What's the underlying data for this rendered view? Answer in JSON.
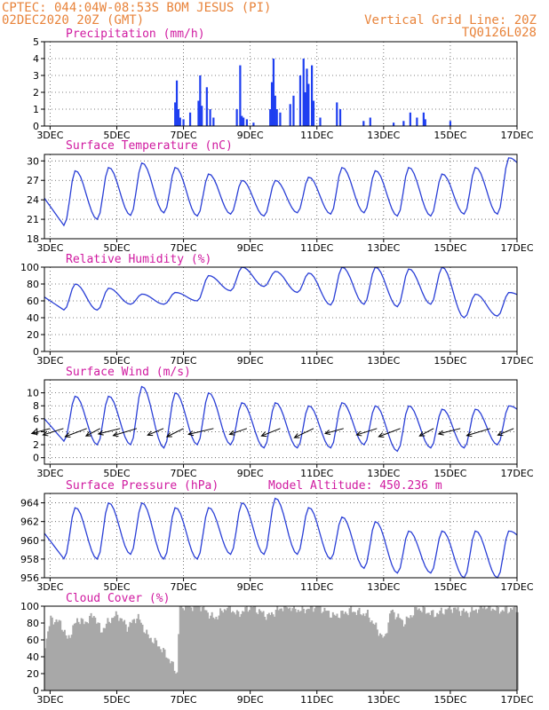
{
  "header": {
    "line1_left": "CPTEC:   044:04W-08:53S   BOM JESUS (PI)",
    "line2_left": "02DEC2020 20Z (GMT)",
    "line1_right": "Vertical Grid Line: 20Z",
    "line2_right": "TQ0126L028"
  },
  "colors": {
    "header": "#e8833a",
    "title": "#d01aa0",
    "curve": "#2a3fd6",
    "precip_bar": "#1f3ff0",
    "cloud_bar": "#a8a8a8",
    "wind_arrow": "#000000"
  },
  "x_axis": {
    "ticks": [
      "3DEC",
      "5DEC",
      "7DEC",
      "9DEC",
      "11DEC",
      "13DEC",
      "15DEC",
      "17DEC"
    ],
    "tick_days": [
      3,
      5,
      7,
      9,
      11,
      13,
      15,
      17
    ],
    "start_day": 2.83,
    "end_day": 17
  },
  "chart_data": [
    {
      "id": "precip",
      "type": "bar",
      "title": "Precipitation (mm/h)",
      "ylim": [
        0,
        5
      ],
      "yticks": [
        0,
        1,
        2,
        3,
        4,
        5
      ],
      "ytick_labels": [
        "0",
        "1",
        "2",
        "3",
        "4",
        "5"
      ],
      "grid": true,
      "events": [
        [
          6.75,
          1.4
        ],
        [
          6.8,
          2.7
        ],
        [
          6.85,
          1.0
        ],
        [
          6.9,
          0.5
        ],
        [
          7.0,
          0.4
        ],
        [
          7.2,
          0.8
        ],
        [
          7.45,
          1.5
        ],
        [
          7.5,
          3.0
        ],
        [
          7.55,
          1.2
        ],
        [
          7.7,
          2.3
        ],
        [
          7.8,
          1.0
        ],
        [
          7.9,
          0.5
        ],
        [
          8.6,
          1.0
        ],
        [
          8.7,
          3.6
        ],
        [
          8.75,
          0.6
        ],
        [
          8.8,
          0.5
        ],
        [
          8.9,
          0.4
        ],
        [
          9.1,
          0.2
        ],
        [
          9.6,
          1.0
        ],
        [
          9.65,
          2.6
        ],
        [
          9.7,
          4.0
        ],
        [
          9.75,
          1.8
        ],
        [
          9.8,
          1.0
        ],
        [
          9.9,
          0.8
        ],
        [
          10.2,
          1.3
        ],
        [
          10.3,
          1.8
        ],
        [
          10.5,
          3.0
        ],
        [
          10.6,
          4.0
        ],
        [
          10.65,
          2.0
        ],
        [
          10.7,
          3.4
        ],
        [
          10.75,
          2.5
        ],
        [
          10.85,
          3.6
        ],
        [
          10.9,
          1.5
        ],
        [
          11.1,
          0.5
        ],
        [
          11.6,
          1.4
        ],
        [
          11.7,
          1.0
        ],
        [
          12.4,
          0.3
        ],
        [
          12.6,
          0.5
        ],
        [
          13.3,
          0.2
        ],
        [
          13.6,
          0.3
        ],
        [
          13.8,
          0.8
        ],
        [
          14.0,
          0.5
        ],
        [
          14.2,
          0.8
        ],
        [
          14.25,
          0.4
        ],
        [
          15.0,
          0.3
        ]
      ]
    },
    {
      "id": "temperature",
      "type": "line",
      "title": "Surface Temperature (nC)",
      "ylim": [
        18,
        31
      ],
      "yticks": [
        18,
        21,
        24,
        27,
        30
      ],
      "ytick_labels": [
        "18",
        "21",
        "24",
        "27",
        "30"
      ],
      "grid": true,
      "mins": [
        20,
        21,
        21.6,
        22,
        21.5,
        21.8,
        21.5,
        22,
        21.8,
        22,
        21.5,
        21.5,
        21.8,
        21.8
      ],
      "maxs": [
        28.5,
        29,
        29.7,
        29,
        28,
        27,
        27,
        27.5,
        29,
        28.5,
        29,
        28,
        29,
        30.5
      ]
    },
    {
      "id": "humidity",
      "type": "line",
      "title": "Relative Humidity (%)",
      "ylim": [
        0,
        100
      ],
      "yticks": [
        0,
        20,
        40,
        60,
        80,
        100
      ],
      "ytick_labels": [
        "0",
        "20",
        "40",
        "60",
        "80",
        "100"
      ],
      "grid": true,
      "mins": [
        49,
        49,
        56,
        56,
        60,
        72,
        77,
        70,
        55,
        56,
        53,
        56,
        40,
        42
      ],
      "maxs": [
        80,
        75,
        68,
        70,
        90,
        100,
        95,
        93,
        100,
        100,
        98,
        100,
        68,
        70
      ]
    },
    {
      "id": "wind",
      "type": "line",
      "title": "Surface Wind (m/s)",
      "ylim": [
        -1,
        12
      ],
      "yticks": [
        0,
        2,
        4,
        6,
        8,
        10
      ],
      "ytick_labels": [
        "0",
        "2",
        "4",
        "6",
        "8",
        "10"
      ],
      "grid": true,
      "mins": [
        2.5,
        2,
        2,
        1.5,
        2,
        2,
        1.5,
        1.5,
        1.5,
        2,
        1,
        1.5,
        1.5,
        2
      ],
      "maxs": [
        9.5,
        9.5,
        11,
        10,
        10,
        8.5,
        8.5,
        8,
        8.5,
        8,
        8,
        7.5,
        7.5,
        8
      ],
      "vector_days": [
        3.0,
        3.4,
        4.1,
        4.5,
        5.1,
        5.6,
        6.4,
        7.0,
        7.9,
        8.9,
        9.9,
        10.9,
        11.8,
        12.8,
        13.5,
        14.5,
        15.3,
        16.2,
        16.9
      ]
    },
    {
      "id": "pressure",
      "type": "line",
      "title": "Surface Pressure (hPa)",
      "annotation": "Model Altitude: 450.236 m",
      "ylim": [
        956,
        965
      ],
      "yticks": [
        956,
        958,
        960,
        962,
        964
      ],
      "ytick_labels": [
        "956",
        "958",
        "960",
        "962",
        "964"
      ],
      "grid": true,
      "mins": [
        958,
        958,
        958.5,
        958,
        958,
        958.5,
        958.5,
        958.5,
        958,
        957,
        956.5,
        956.5,
        956,
        956
      ],
      "maxs": [
        963.5,
        964,
        964,
        963.5,
        963.5,
        964,
        964.5,
        963.5,
        962.5,
        962,
        961,
        961,
        961,
        961
      ]
    },
    {
      "id": "cloud",
      "type": "bar",
      "title": "Cloud Cover (%)",
      "ylim": [
        0,
        100
      ],
      "yticks": [
        0,
        20,
        40,
        60,
        80,
        100
      ],
      "ytick_labels": [
        "0",
        "20",
        "40",
        "60",
        "80",
        "100"
      ],
      "grid": false,
      "bin_hours": 1,
      "keypoints": [
        [
          2.83,
          55
        ],
        [
          3.0,
          85
        ],
        [
          3.3,
          80
        ],
        [
          3.5,
          60
        ],
        [
          3.8,
          85
        ],
        [
          4.0,
          80
        ],
        [
          4.3,
          90
        ],
        [
          4.5,
          70
        ],
        [
          4.8,
          85
        ],
        [
          5.0,
          90
        ],
        [
          5.3,
          75
        ],
        [
          5.6,
          88
        ],
        [
          5.9,
          65
        ],
        [
          6.2,
          55
        ],
        [
          6.5,
          40
        ],
        [
          6.8,
          20
        ],
        [
          6.85,
          100
        ],
        [
          7.5,
          100
        ],
        [
          7.9,
          85
        ],
        [
          8.3,
          100
        ],
        [
          8.6,
          90
        ],
        [
          9.0,
          100
        ],
        [
          9.5,
          88
        ],
        [
          10.0,
          100
        ],
        [
          10.5,
          95
        ],
        [
          11.0,
          100
        ],
        [
          11.5,
          88
        ],
        [
          12.0,
          95
        ],
        [
          12.5,
          90
        ],
        [
          13.0,
          60
        ],
        [
          13.2,
          95
        ],
        [
          13.6,
          80
        ],
        [
          14.0,
          98
        ],
        [
          14.5,
          90
        ],
        [
          15.0,
          98
        ],
        [
          15.5,
          92
        ],
        [
          16.0,
          100
        ],
        [
          16.5,
          95
        ],
        [
          17.0,
          97
        ]
      ]
    }
  ]
}
